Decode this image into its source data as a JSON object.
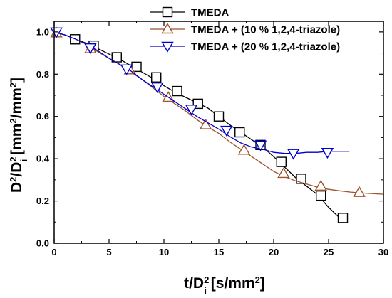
{
  "chart_data": {
    "type": "line",
    "xlabel": "t/Dᵢ² [s/mm²]",
    "ylabel": "D²/Dᵢ² [mm²/mm²]",
    "xlabel_parts": {
      "main": "t/D",
      "sup": "2",
      "sub": "i",
      "unit_open": " [s/mm",
      "unit_sup": "2",
      "unit_close": "]"
    },
    "ylabel_parts": {
      "a": "D",
      "a_sup": "2",
      "slash": "/D",
      "b_sup": "2",
      "b_sub": "i",
      "unit_open": " [mm",
      "unit_sup1": "2",
      "unit_mid": "/mm",
      "unit_sup2": "2",
      "unit_close": "]"
    },
    "xlim": [
      0,
      30
    ],
    "ylim": [
      0,
      1.05
    ],
    "xticks": [
      0,
      5,
      10,
      15,
      20,
      25,
      30
    ],
    "yticks": [
      0.0,
      0.2,
      0.4,
      0.6,
      0.8,
      1.0
    ],
    "xtick_labels": [
      "0",
      "5",
      "10",
      "15",
      "20",
      "25",
      "30"
    ],
    "ytick_labels": [
      "0.0",
      "0.2",
      "0.4",
      "0.6",
      "0.8",
      "1.0"
    ],
    "grid": false,
    "legend_position": "top-right",
    "series": [
      {
        "name": "TMEDA",
        "color": "#000000",
        "marker": "square",
        "x": [
          0,
          1,
          2,
          3,
          4,
          5,
          6,
          7,
          8,
          9,
          10,
          11,
          12,
          13,
          14,
          15,
          16,
          17,
          18,
          19,
          20,
          21,
          22,
          23,
          24,
          25,
          26,
          26.6
        ],
        "y": [
          1.0,
          0.985,
          0.965,
          0.945,
          0.92,
          0.895,
          0.87,
          0.84,
          0.81,
          0.78,
          0.745,
          0.715,
          0.69,
          0.665,
          0.64,
          0.6,
          0.56,
          0.525,
          0.49,
          0.455,
          0.41,
          0.36,
          0.31,
          0.27,
          0.23,
          0.17,
          0.12,
          0.1
        ],
        "marker_x": [
          1.9,
          3.6,
          5.7,
          7.5,
          9.3,
          11.2,
          13.1,
          15.0,
          16.9,
          18.8,
          20.7,
          22.5,
          24.3,
          26.3
        ],
        "marker_y": [
          0.965,
          0.935,
          0.88,
          0.835,
          0.785,
          0.72,
          0.66,
          0.6,
          0.525,
          0.465,
          0.385,
          0.305,
          0.225,
          0.12
        ]
      },
      {
        "name": "TMEDA + (10 % 1,2,4-triazole)",
        "color": "#a0522d",
        "marker": "triangle-up",
        "x": [
          0,
          1,
          2,
          3,
          4,
          5,
          6,
          7,
          8,
          9,
          10,
          11,
          12,
          13,
          14,
          15,
          16,
          17,
          18,
          19,
          20,
          21,
          22,
          23,
          24,
          25,
          26,
          27,
          28,
          29,
          30
        ],
        "y": [
          1.0,
          0.985,
          0.965,
          0.94,
          0.905,
          0.875,
          0.845,
          0.81,
          0.775,
          0.735,
          0.695,
          0.66,
          0.625,
          0.585,
          0.55,
          0.52,
          0.48,
          0.445,
          0.41,
          0.375,
          0.34,
          0.315,
          0.295,
          0.28,
          0.265,
          0.255,
          0.248,
          0.242,
          0.238,
          0.235,
          0.232
        ],
        "marker_x": [
          0.2,
          3.3,
          6.9,
          10.4,
          13.8,
          17.3,
          20.9,
          24.3,
          27.8
        ],
        "marker_y": [
          0.995,
          0.92,
          0.82,
          0.69,
          0.56,
          0.44,
          0.33,
          0.27,
          0.24
        ]
      },
      {
        "name": "TMEDA + (20 % 1,2,4-triazole)",
        "color": "#0000cc",
        "marker": "triangle-down",
        "x": [
          0,
          1,
          2,
          3,
          4,
          5,
          6,
          7,
          8,
          9,
          10,
          11,
          12,
          13,
          14,
          15,
          16,
          17,
          18,
          19,
          20,
          21,
          22,
          23,
          24,
          25,
          26,
          26.9
        ],
        "y": [
          1.0,
          0.985,
          0.965,
          0.94,
          0.91,
          0.875,
          0.845,
          0.815,
          0.775,
          0.74,
          0.705,
          0.67,
          0.635,
          0.6,
          0.57,
          0.54,
          0.505,
          0.475,
          0.455,
          0.445,
          0.43,
          0.425,
          0.425,
          0.43,
          0.43,
          0.435,
          0.435,
          0.435
        ],
        "marker_x": [
          0.2,
          3.3,
          6.6,
          9.4,
          12.5,
          15.7,
          18.8,
          21.8,
          24.9
        ],
        "marker_y": [
          1.0,
          0.925,
          0.825,
          0.74,
          0.635,
          0.535,
          0.465,
          0.425,
          0.43
        ]
      }
    ]
  }
}
